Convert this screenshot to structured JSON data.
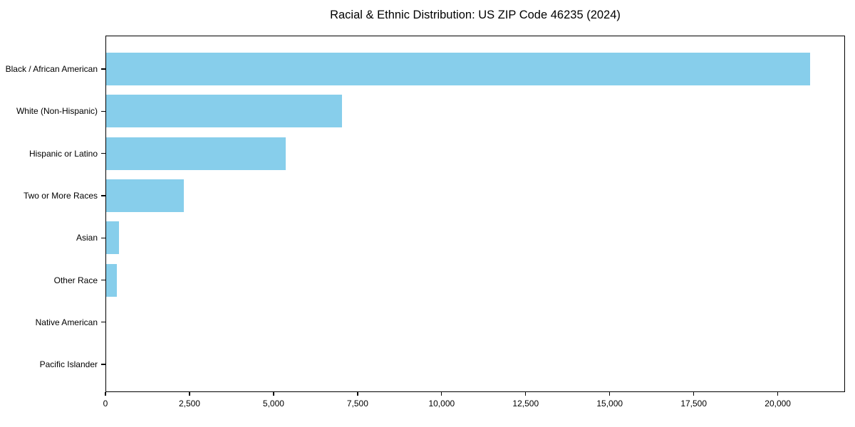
{
  "title": "Racial & Ethnic Distribution: US ZIP Code 46235 (2024)",
  "colors": {
    "bar": "#87CEEB",
    "axis": "#000000",
    "background": "#FFFFFF",
    "text": "#000000"
  },
  "chart_data": {
    "type": "bar",
    "orientation": "horizontal",
    "title": "Racial & Ethnic Distribution: US ZIP Code 46235 (2024)",
    "xlabel": "",
    "ylabel": "",
    "categories": [
      "Black / African American",
      "White (Non-Hispanic)",
      "Hispanic or Latino",
      "Two or More Races",
      "Asian",
      "Other Race",
      "Native American",
      "Pacific Islander"
    ],
    "values": [
      20940,
      7010,
      5340,
      2300,
      370,
      300,
      0,
      0
    ],
    "xlim": [
      0,
      22000
    ],
    "xticks": [
      0,
      2500,
      5000,
      7500,
      10000,
      12500,
      15000,
      17500,
      20000
    ],
    "xtick_labels": [
      "0",
      "2,500",
      "5,000",
      "7,500",
      "10,000",
      "12,500",
      "15,000",
      "17,500",
      "20,000"
    ],
    "grid": false,
    "legend": false,
    "bar_color": "#87CEEB"
  }
}
